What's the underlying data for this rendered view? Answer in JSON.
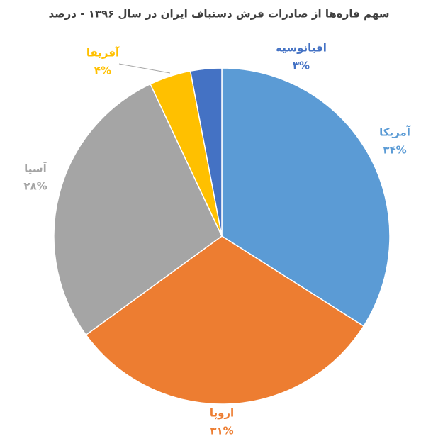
{
  "chart_data": {
    "type": "pie",
    "title": "سهم قاره‌ها از صادرات فرش دستباف ایران در سال ۱۳۹۶ - درصد",
    "categories": [
      "آمریکا",
      "اروپا",
      "آسیا",
      "آفریقا",
      "اقیانوسیه"
    ],
    "values": [
      34,
      31,
      28,
      4,
      3
    ],
    "value_labels": [
      "۳۴%",
      "۳۱%",
      "۲۸%",
      "۴%",
      "۳%"
    ],
    "colors": [
      "#5b9bd5",
      "#ed7d31",
      "#a5a5a5",
      "#ffc000",
      "#4472c4"
    ]
  }
}
